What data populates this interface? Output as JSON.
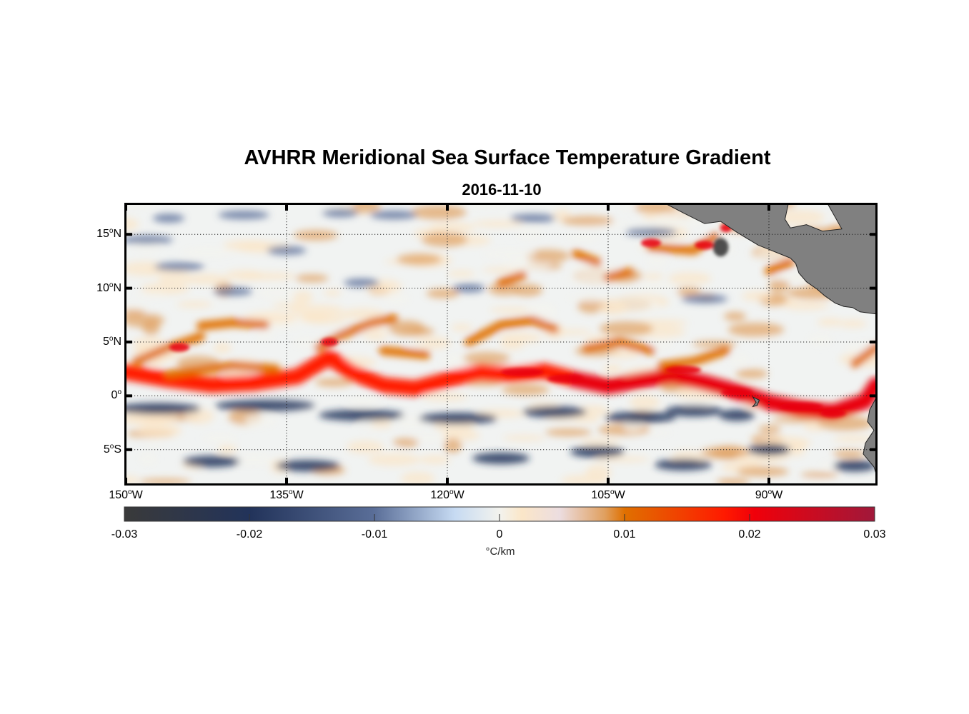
{
  "title": "AVHRR Meridional Sea Surface Temperature Gradient",
  "subtitle": "2016-11-10",
  "colors": {
    "land": "#808080",
    "frame": "#000000",
    "colormap": [
      "#3a3a3a",
      "#22335a",
      "#5a6e98",
      "#c6daf2",
      "#f3f3ee",
      "#fbe6c8",
      "#e0a060",
      "#e07000",
      "#ff1a00",
      "#e8000c",
      "#a0183a"
    ]
  },
  "chart_data": {
    "type": "heatmap",
    "title": "AVHRR Meridional Sea Surface Temperature Gradient",
    "subtitle": "2016-11-10",
    "xlabel": "",
    "ylabel": "",
    "xlim": [
      -150,
      -80
    ],
    "ylim": [
      -8,
      18
    ],
    "grid": true,
    "x_ticks": [
      {
        "value": -150,
        "deg": "150",
        "hemi": "W"
      },
      {
        "value": -135,
        "deg": "135",
        "hemi": "W"
      },
      {
        "value": -120,
        "deg": "120",
        "hemi": "W"
      },
      {
        "value": -105,
        "deg": "105",
        "hemi": "W"
      },
      {
        "value": -90,
        "deg": "90",
        "hemi": "W"
      }
    ],
    "y_ticks": [
      {
        "value": 15,
        "deg": "15",
        "hemi": "N"
      },
      {
        "value": 10,
        "deg": "10",
        "hemi": "N"
      },
      {
        "value": 5,
        "deg": "5",
        "hemi": "N"
      },
      {
        "value": 0,
        "deg": "0",
        "hemi": ""
      },
      {
        "value": -5,
        "deg": "5",
        "hemi": "S"
      }
    ],
    "colorbar": {
      "range": [
        -0.03,
        0.03
      ],
      "ticks": [
        "-0.03",
        "-0.02",
        "-0.01",
        "0",
        "0.01",
        "0.02",
        "0.03"
      ],
      "tick_values": [
        -0.03,
        -0.02,
        -0.01,
        0,
        0.01,
        0.02,
        0.03
      ],
      "unit": "°C/km",
      "orientation": "horizontal",
      "placement": "bottom"
    },
    "features": [
      {
        "name": "positive gradient band (equatorial front)",
        "lat_range": [
          0,
          3
        ],
        "lon_range": [
          -150,
          -80
        ],
        "value": 0.02
      },
      {
        "name": "negative gradient band",
        "lat_range": [
          -3,
          -1
        ],
        "lon_range": [
          -150,
          -100
        ],
        "value": -0.02
      },
      {
        "name": "tropical instability waves",
        "lat_range": [
          2,
          7
        ],
        "lon_range": [
          -148,
          -100
        ],
        "value": 0.012
      }
    ]
  }
}
